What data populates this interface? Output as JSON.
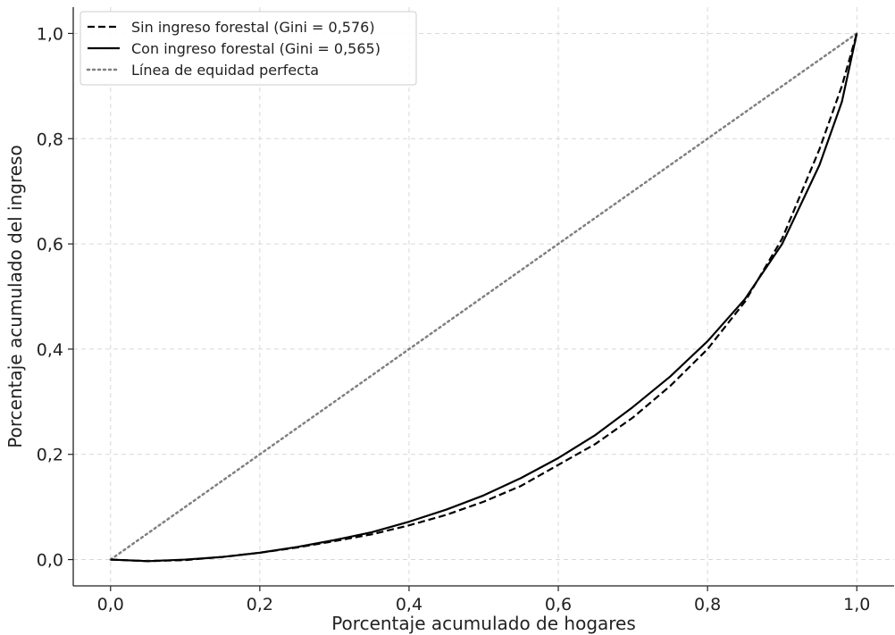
{
  "chart_data": {
    "type": "line",
    "title": "",
    "xlabel": "Porcentaje acumulado de hogares",
    "ylabel": "Porcentaje acumulado del ingreso",
    "xlim": [
      -0.05,
      1.05
    ],
    "ylim": [
      -0.05,
      1.05
    ],
    "xticks": [
      0.0,
      0.2,
      0.4,
      0.6,
      0.8,
      1.0
    ],
    "yticks": [
      0.0,
      0.2,
      0.4,
      0.6,
      0.8,
      1.0
    ],
    "xtick_labels": [
      "0,0",
      "0,2",
      "0,4",
      "0,6",
      "0,8",
      "1,0"
    ],
    "ytick_labels": [
      "0,0",
      "0,2",
      "0,4",
      "0,6",
      "0,8",
      "1,0"
    ],
    "grid": true,
    "legend_position": "top-left",
    "series": [
      {
        "name": "Sin ingreso forestal (Gini = 0,576)",
        "color": "#000000",
        "style": "dashed",
        "x": [
          0.0,
          0.05,
          0.1,
          0.15,
          0.2,
          0.25,
          0.3,
          0.35,
          0.4,
          0.45,
          0.5,
          0.55,
          0.6,
          0.65,
          0.7,
          0.75,
          0.8,
          0.85,
          0.9,
          0.95,
          0.98,
          1.0
        ],
        "y": [
          0.0,
          -0.003,
          -0.001,
          0.005,
          0.013,
          0.023,
          0.035,
          0.048,
          0.065,
          0.085,
          0.11,
          0.14,
          0.18,
          0.22,
          0.27,
          0.33,
          0.4,
          0.49,
          0.61,
          0.78,
          0.9,
          1.0
        ]
      },
      {
        "name": "Con ingreso forestal (Gini = 0,565)",
        "color": "#000000",
        "style": "solid",
        "x": [
          0.0,
          0.05,
          0.1,
          0.15,
          0.2,
          0.25,
          0.3,
          0.35,
          0.4,
          0.45,
          0.5,
          0.55,
          0.6,
          0.65,
          0.7,
          0.75,
          0.8,
          0.85,
          0.9,
          0.95,
          0.98,
          1.0
        ],
        "y": [
          0.0,
          -0.003,
          0.0,
          0.005,
          0.013,
          0.024,
          0.037,
          0.052,
          0.072,
          0.095,
          0.122,
          0.155,
          0.193,
          0.237,
          0.29,
          0.348,
          0.415,
          0.495,
          0.6,
          0.75,
          0.87,
          1.0
        ]
      },
      {
        "name": "Línea de equidad perfecta",
        "color": "#808080",
        "style": "dotted",
        "x": [
          0.0,
          1.0
        ],
        "y": [
          0.0,
          1.0
        ]
      }
    ]
  }
}
